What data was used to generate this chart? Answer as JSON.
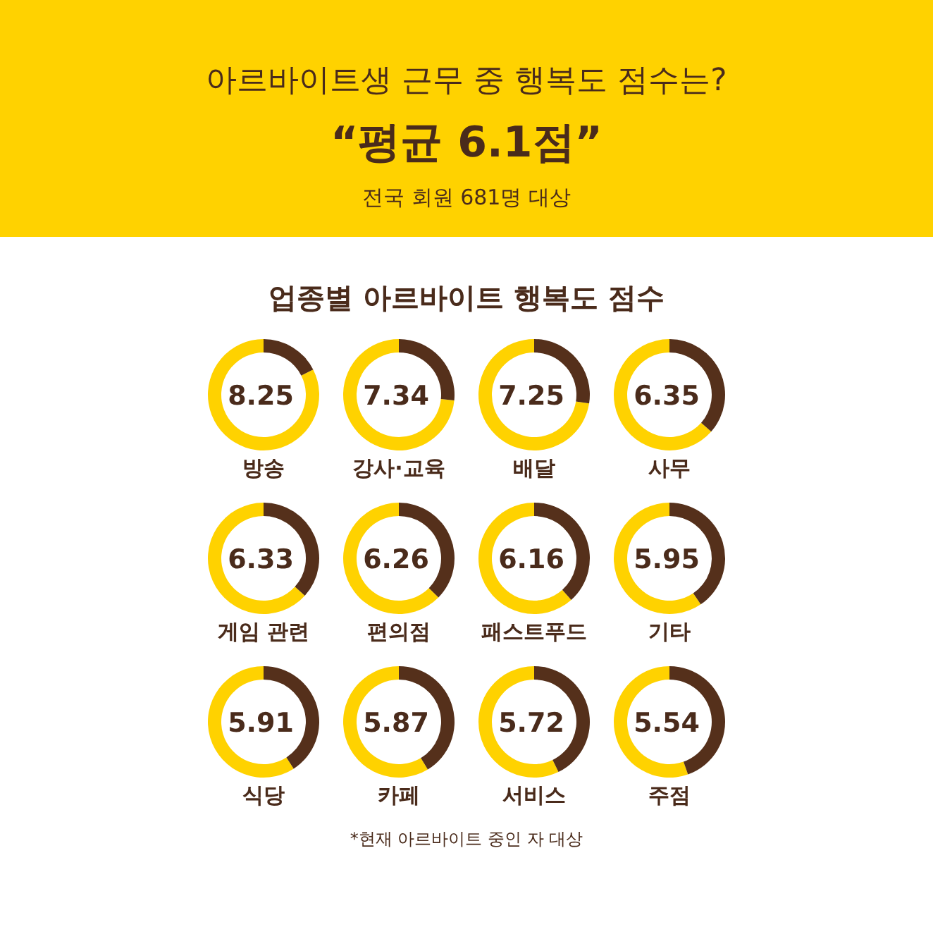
{
  "chart_data": [
    {
      "type": "other",
      "title": "아르바이트생 근무 중 행복도 점수는?",
      "subtitle": "“평균 6.1점”",
      "annotations": [
        "전국 회원 681명 대상"
      ]
    },
    {
      "type": "other",
      "title": "업종별 아르바이트 행복도 점수",
      "annotations": [
        "*현재 아르바이트 중인 자 대상"
      ]
    },
    {
      "type": "donut",
      "title": "방송",
      "categories": [
        null,
        null
      ],
      "values": [
        8.25,
        1.75
      ],
      "colors": [
        "#ffd200",
        "#55301b"
      ],
      "value_labels": [
        "8.25",
        null
      ]
    },
    {
      "type": "donut",
      "title": "강사·교육",
      "categories": [
        null,
        null
      ],
      "values": [
        7.34,
        2.66
      ],
      "colors": [
        "#ffd200",
        "#55301b"
      ],
      "value_labels": [
        "7.34",
        null
      ]
    },
    {
      "type": "donut",
      "title": "배달",
      "categories": [
        null,
        null
      ],
      "values": [
        7.25,
        2.75
      ],
      "colors": [
        "#ffd200",
        "#55301b"
      ],
      "value_labels": [
        "7.25",
        null
      ]
    },
    {
      "type": "donut",
      "title": "사무",
      "categories": [
        null,
        null
      ],
      "values": [
        6.35,
        3.65
      ],
      "colors": [
        "#ffd200",
        "#55301b"
      ],
      "value_labels": [
        "6.35",
        null
      ]
    },
    {
      "type": "donut",
      "title": "게임 관련",
      "categories": [
        null,
        null
      ],
      "values": [
        6.33,
        3.67
      ],
      "colors": [
        "#ffd200",
        "#55301b"
      ],
      "value_labels": [
        "6.33",
        null
      ]
    },
    {
      "type": "donut",
      "title": "편의점",
      "categories": [
        null,
        null
      ],
      "values": [
        6.26,
        3.74
      ],
      "colors": [
        "#ffd200",
        "#55301b"
      ],
      "value_labels": [
        "6.26",
        null
      ]
    },
    {
      "type": "donut",
      "title": "패스트푸드",
      "categories": [
        null,
        null
      ],
      "values": [
        6.16,
        3.84
      ],
      "colors": [
        "#ffd200",
        "#55301b"
      ],
      "value_labels": [
        "6.16",
        null
      ]
    },
    {
      "type": "donut",
      "title": "기타",
      "categories": [
        null,
        null
      ],
      "values": [
        5.95,
        4.05
      ],
      "colors": [
        "#ffd200",
        "#55301b"
      ],
      "value_labels": [
        "5.95",
        null
      ]
    },
    {
      "type": "donut",
      "title": "식당",
      "categories": [
        null,
        null
      ],
      "values": [
        5.91,
        4.09
      ],
      "colors": [
        "#ffd200",
        "#55301b"
      ],
      "value_labels": [
        "5.91",
        null
      ]
    },
    {
      "type": "donut",
      "title": "카페",
      "categories": [
        null,
        null
      ],
      "values": [
        5.87,
        4.13
      ],
      "colors": [
        "#ffd200",
        "#55301b"
      ],
      "value_labels": [
        "5.87",
        null
      ]
    },
    {
      "type": "donut",
      "title": "서비스",
      "categories": [
        null,
        null
      ],
      "values": [
        5.72,
        4.28
      ],
      "colors": [
        "#ffd200",
        "#55301b"
      ],
      "value_labels": [
        "5.72",
        null
      ]
    },
    {
      "type": "donut",
      "title": "주점",
      "categories": [
        null,
        null
      ],
      "values": [
        5.54,
        4.46
      ],
      "colors": [
        "#ffd200",
        "#55301b"
      ],
      "value_labels": [
        "5.54",
        null
      ]
    }
  ]
}
